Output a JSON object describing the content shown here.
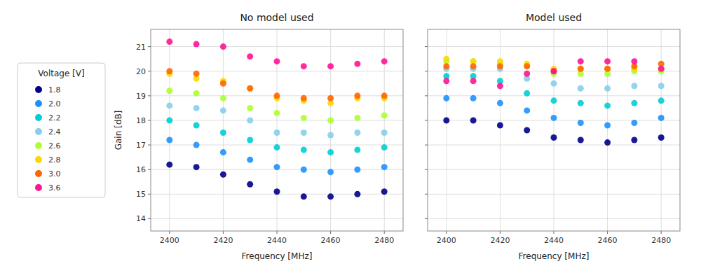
{
  "chart_data": [
    {
      "type": "scatter",
      "title": "No model used",
      "xlabel": "Frequency [MHz]",
      "ylabel": "Gain [dB]",
      "legend": "left",
      "legend_title": "Voltage [V]",
      "x": [
        2400,
        2410,
        2420,
        2430,
        2440,
        2450,
        2460,
        2470,
        2480
      ],
      "xlim": [
        2393,
        2487
      ],
      "xticks": [
        2400,
        2420,
        2440,
        2460,
        2480
      ],
      "ylim": [
        13.5,
        21.7
      ],
      "yticks": [
        14,
        15,
        16,
        17,
        18,
        19,
        20,
        21
      ],
      "grid": true,
      "series": [
        {
          "name": "1.8",
          "color": "#00008B",
          "values": [
            16.2,
            16.1,
            15.8,
            15.4,
            15.1,
            14.9,
            14.9,
            15.0,
            15.1
          ]
        },
        {
          "name": "2.0",
          "color": "#1E90FF",
          "values": [
            17.2,
            17.0,
            16.7,
            16.4,
            16.1,
            16.0,
            15.9,
            16.0,
            16.1
          ]
        },
        {
          "name": "2.2",
          "color": "#00CED1",
          "values": [
            18.0,
            17.8,
            17.5,
            17.2,
            16.9,
            16.8,
            16.7,
            16.8,
            16.9
          ]
        },
        {
          "name": "2.4",
          "color": "#87CEEB",
          "values": [
            18.6,
            18.5,
            18.4,
            18.0,
            17.5,
            17.5,
            17.4,
            17.5,
            17.5
          ]
        },
        {
          "name": "2.6",
          "color": "#ADFF2F",
          "values": [
            19.2,
            19.1,
            18.9,
            18.5,
            18.3,
            18.1,
            18.0,
            18.1,
            18.2
          ]
        },
        {
          "name": "2.8",
          "color": "#FFD700",
          "values": [
            19.9,
            19.7,
            19.6,
            19.3,
            18.9,
            18.8,
            18.7,
            18.9,
            18.9
          ]
        },
        {
          "name": "3.0",
          "color": "#FF6600",
          "values": [
            20.0,
            19.9,
            19.5,
            19.3,
            19.0,
            18.9,
            18.9,
            19.0,
            19.0
          ]
        },
        {
          "name": "3.6",
          "color": "#FF1493",
          "values": [
            21.2,
            21.1,
            21.0,
            20.6,
            20.4,
            20.2,
            20.2,
            20.3,
            20.4
          ]
        }
      ]
    },
    {
      "type": "scatter",
      "title": "Model used",
      "xlabel": "Frequency [MHz]",
      "tick_labels": "x",
      "x": [
        2400,
        2410,
        2420,
        2430,
        2440,
        2450,
        2460,
        2470,
        2480
      ],
      "xlim": [
        2393,
        2487
      ],
      "xticks": [
        2400,
        2420,
        2440,
        2460,
        2480
      ],
      "ylim": [
        13.5,
        21.7
      ],
      "yticks": [
        14,
        15,
        16,
        17,
        18,
        19,
        20,
        21
      ],
      "grid": true,
      "series": [
        {
          "name": "1.8",
          "color": "#00008B",
          "values": [
            18.0,
            18.0,
            17.8,
            17.6,
            17.3,
            17.2,
            17.1,
            17.2,
            17.3
          ]
        },
        {
          "name": "2.0",
          "color": "#1E90FF",
          "values": [
            18.9,
            18.9,
            18.7,
            18.4,
            18.1,
            17.9,
            17.8,
            17.9,
            18.1
          ]
        },
        {
          "name": "2.2",
          "color": "#00CED1",
          "values": [
            19.8,
            19.8,
            19.6,
            19.1,
            18.8,
            18.7,
            18.6,
            18.7,
            18.8
          ]
        },
        {
          "name": "2.4",
          "color": "#87CEEB",
          "values": [
            20.1,
            20.1,
            20.1,
            19.7,
            19.5,
            19.3,
            19.3,
            19.4,
            19.4
          ]
        },
        {
          "name": "2.6",
          "color": "#ADFF2F",
          "values": [
            20.4,
            20.4,
            20.3,
            20.2,
            19.9,
            19.9,
            19.9,
            20.0,
            20.0
          ]
        },
        {
          "name": "2.8",
          "color": "#FFD700",
          "values": [
            20.5,
            20.4,
            20.4,
            20.3,
            20.1,
            20.1,
            20.1,
            20.1,
            20.1
          ]
        },
        {
          "name": "3.0",
          "color": "#FF6600",
          "values": [
            20.2,
            20.2,
            20.2,
            20.2,
            20.0,
            20.1,
            20.1,
            20.2,
            20.3
          ]
        },
        {
          "name": "3.6",
          "color": "#FF1493",
          "values": [
            19.6,
            19.6,
            19.4,
            19.9,
            20.0,
            20.4,
            20.4,
            20.4,
            20.1
          ]
        }
      ]
    }
  ]
}
